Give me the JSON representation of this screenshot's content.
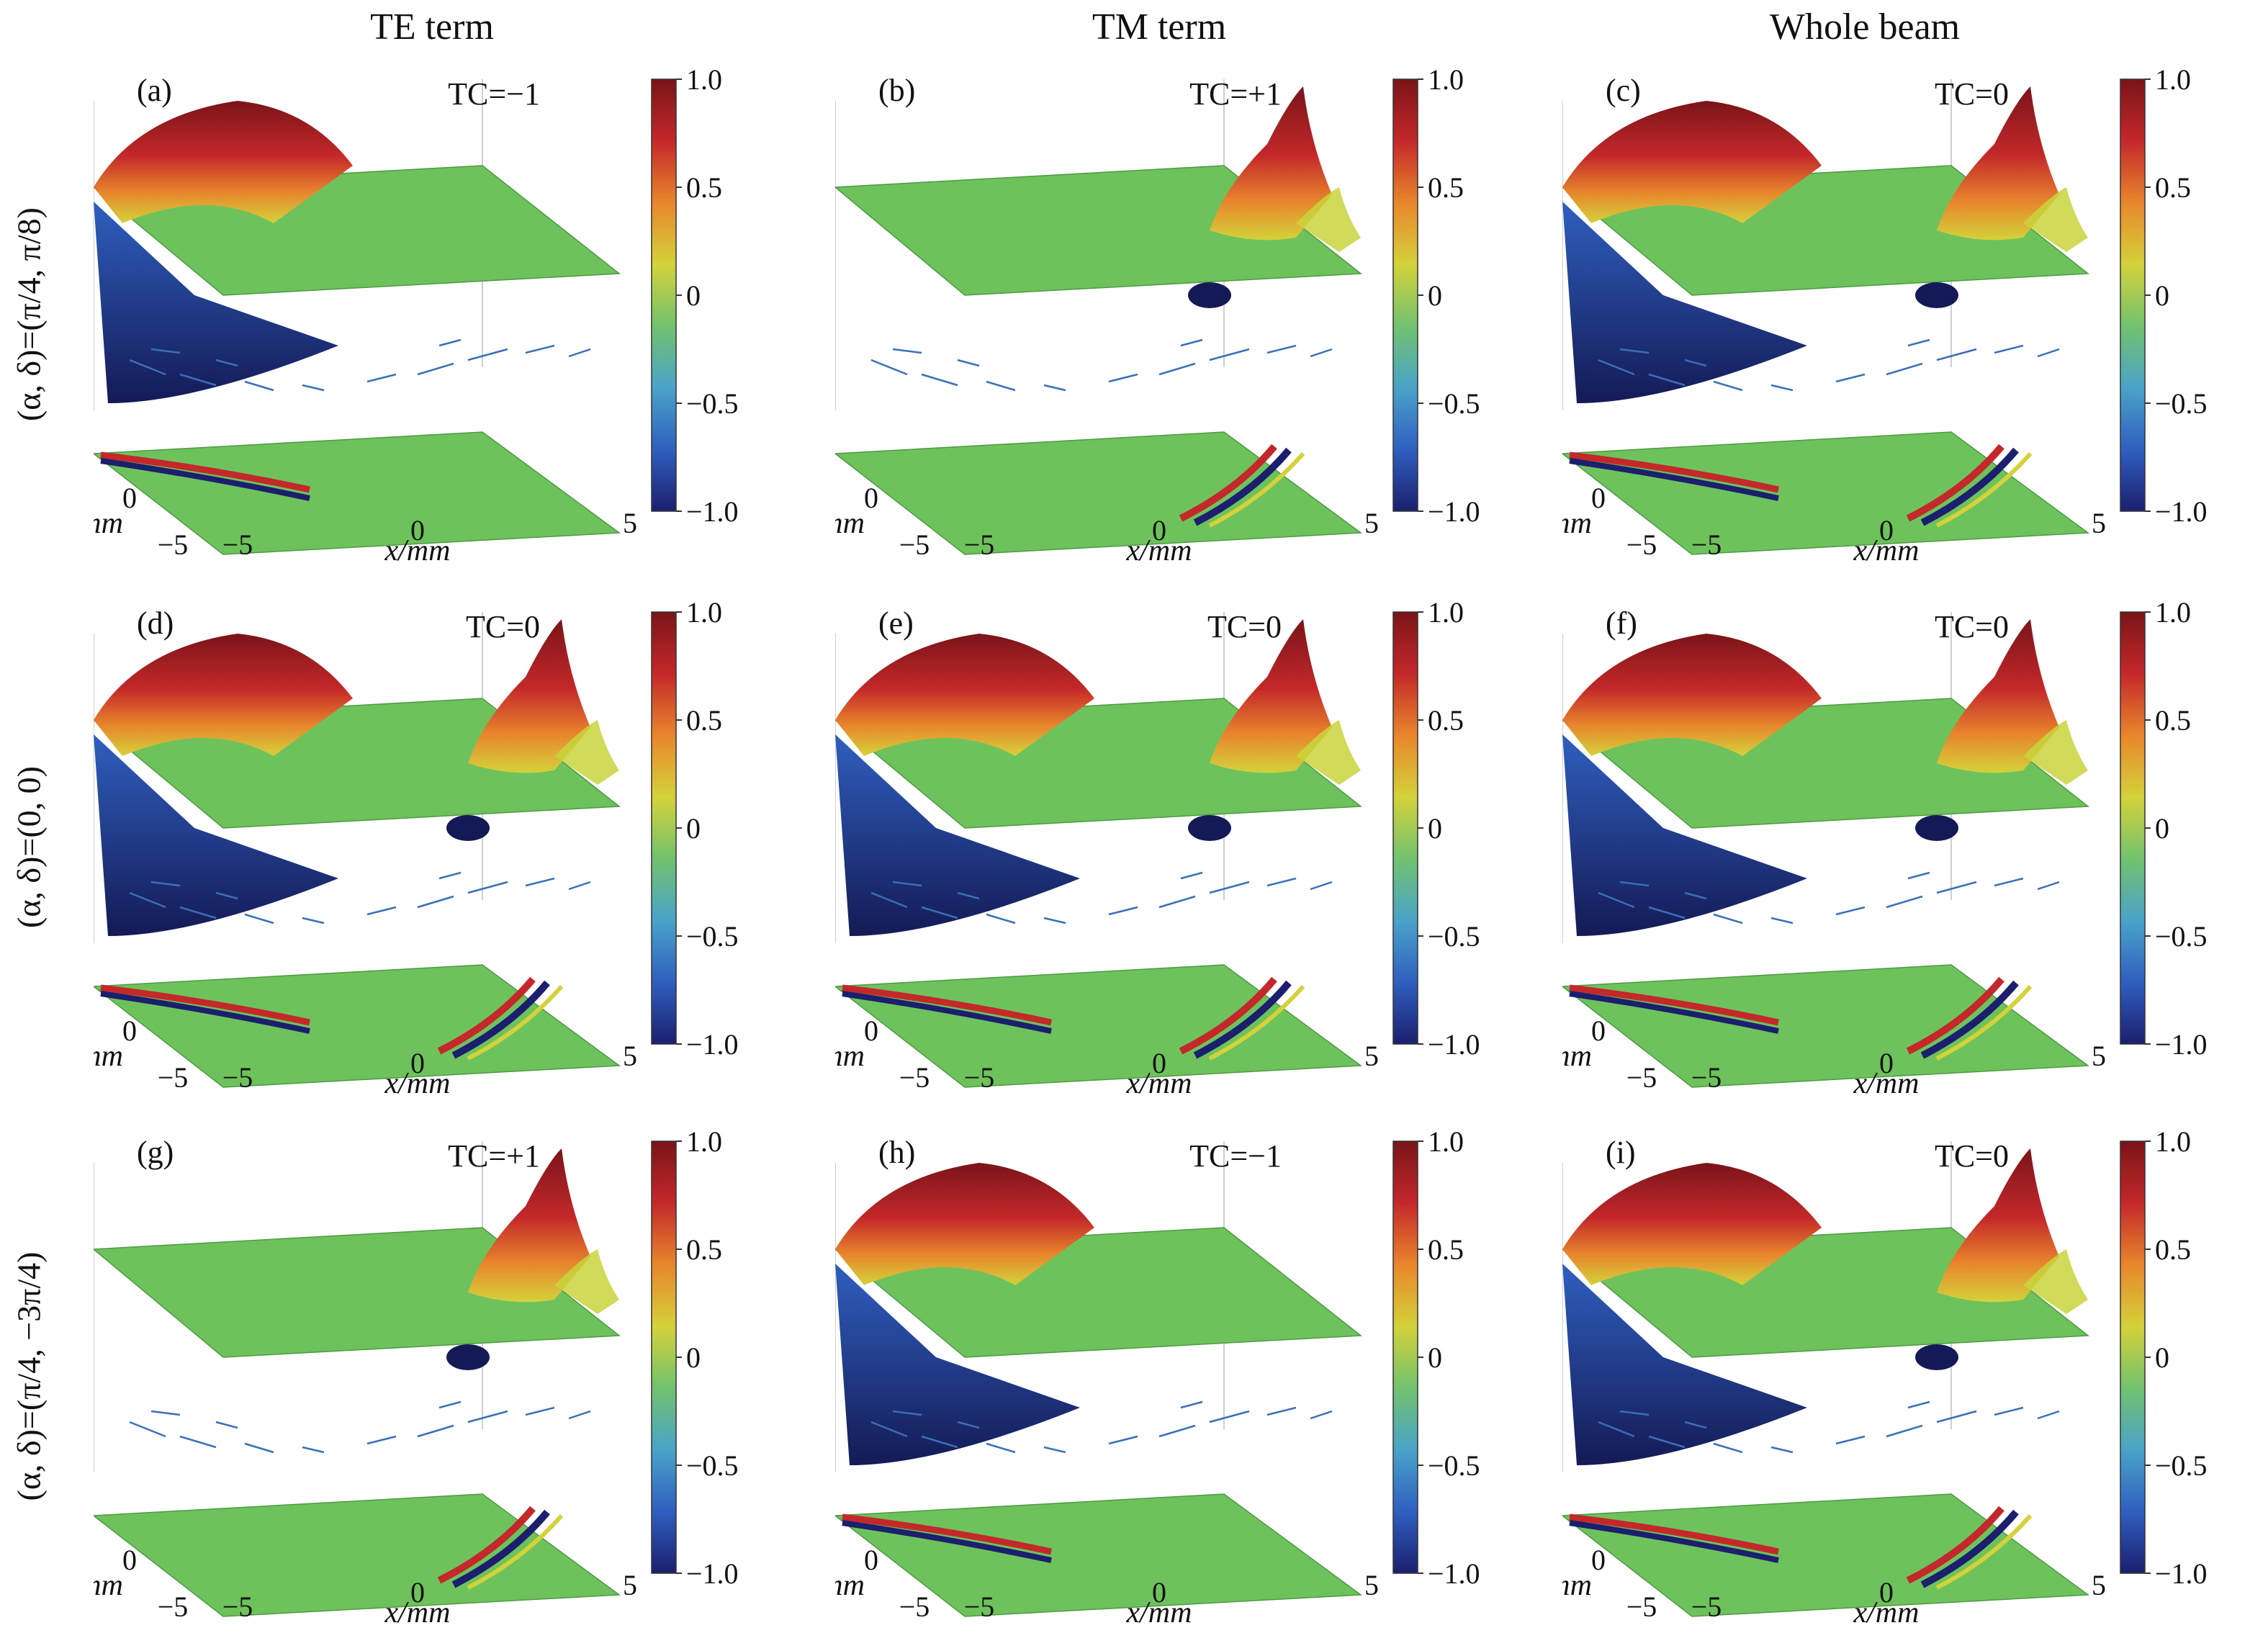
{
  "columns": [
    "TE term",
    "TM term",
    "Whole beam"
  ],
  "rows": [
    "(α, δ)=(π/4, π/8)",
    "(α, δ)=(0, 0)",
    "(α, δ)=(π/4, −3π/4)"
  ],
  "colormap": {
    "name": "jet",
    "stops": [
      "#1b1f6e",
      "#2f5fbf",
      "#4aa3c9",
      "#72c26e",
      "#d4d23a",
      "#e8862c",
      "#c4282a",
      "#7a1418"
    ],
    "ticks": [
      "1.0",
      "0.5",
      "0",
      "−0.5",
      "−1.0"
    ],
    "surface_color": "#6ec25c"
  },
  "axis_ticks": {
    "x": [
      "−5",
      "0",
      "5"
    ],
    "y": [
      "−5",
      "0",
      "5"
    ],
    "z_top": "0",
    "z_bottom": "5"
  },
  "axis_labels": {
    "x": "x/mm",
    "y": "y/mm"
  },
  "chart_data": [
    {
      "id": "a",
      "label": "(a)",
      "type": "surface",
      "row": 0,
      "col": 0,
      "tc": "TC=−1",
      "left_lobe": 1,
      "right_lobe": 0
    },
    {
      "id": "b",
      "label": "(b)",
      "type": "surface",
      "row": 0,
      "col": 1,
      "tc": "TC=+1",
      "left_lobe": 0,
      "right_lobe": 1
    },
    {
      "id": "c",
      "label": "(c)",
      "type": "surface",
      "row": 0,
      "col": 2,
      "tc": "TC=0",
      "left_lobe": 1,
      "right_lobe": 1
    },
    {
      "id": "d",
      "label": "(d)",
      "type": "surface",
      "row": 1,
      "col": 0,
      "tc": "TC=0",
      "left_lobe": 1,
      "right_lobe": 1
    },
    {
      "id": "e",
      "label": "(e)",
      "type": "surface",
      "row": 1,
      "col": 1,
      "tc": "TC=0",
      "left_lobe": 1,
      "right_lobe": 1
    },
    {
      "id": "f",
      "label": "(f)",
      "type": "surface",
      "row": 1,
      "col": 2,
      "tc": "TC=0",
      "left_lobe": 1,
      "right_lobe": 1
    },
    {
      "id": "g",
      "label": "(g)",
      "type": "surface",
      "row": 2,
      "col": 0,
      "tc": "TC=+1",
      "left_lobe": 0,
      "right_lobe": 1
    },
    {
      "id": "h",
      "label": "(h)",
      "type": "surface",
      "row": 2,
      "col": 1,
      "tc": "TC=−1",
      "left_lobe": 1,
      "right_lobe": 0
    },
    {
      "id": "i",
      "label": "(i)",
      "type": "surface",
      "row": 2,
      "col": 2,
      "tc": "TC=0",
      "left_lobe": 1,
      "right_lobe": 1
    }
  ]
}
